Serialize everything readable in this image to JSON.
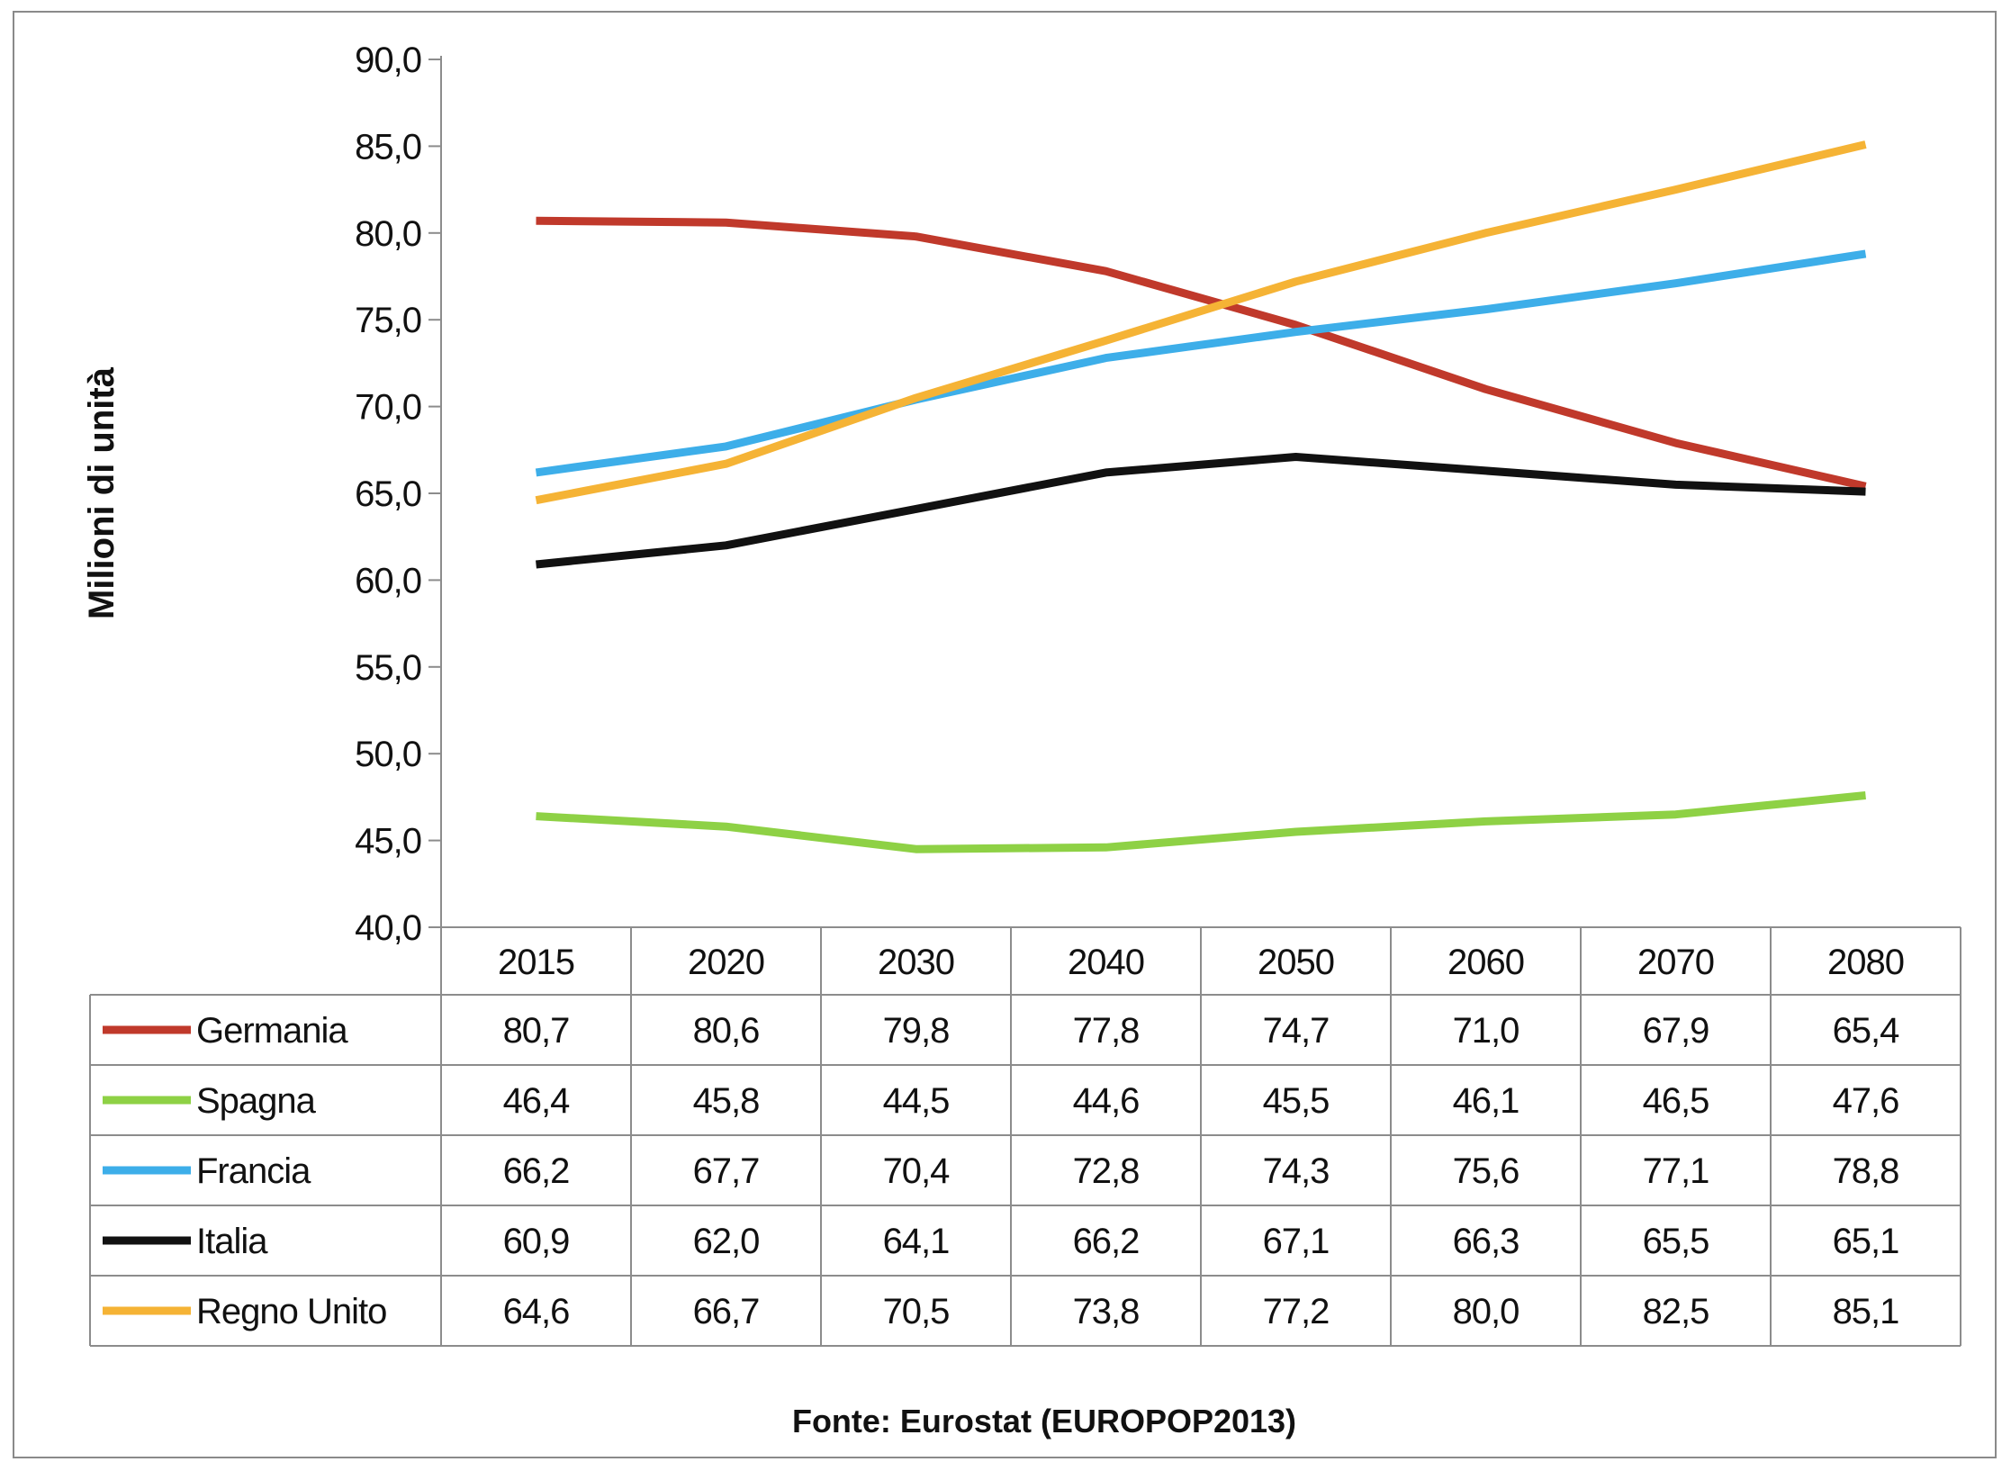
{
  "chart_data": {
    "type": "line",
    "title": "",
    "xlabel": "",
    "ylabel": "Milioni di unità",
    "ylim": [
      40,
      90
    ],
    "y_ticks": [
      "40,0",
      "45,0",
      "50,0",
      "55,0",
      "60,0",
      "65,0",
      "70,0",
      "75,0",
      "80,0",
      "85,0",
      "90,0"
    ],
    "x": [
      "2015",
      "2020",
      "2030",
      "2040",
      "2050",
      "2060",
      "2070",
      "2080"
    ],
    "grid": false,
    "legend": "data-table-below",
    "series": [
      {
        "name": "Germania",
        "color": "#c0392b",
        "values": [
          80.7,
          80.6,
          79.8,
          77.8,
          74.7,
          71.0,
          67.9,
          65.4
        ],
        "labels": [
          "80,7",
          "80,6",
          "79,8",
          "77,8",
          "74,7",
          "71,0",
          "67,9",
          "65,4"
        ]
      },
      {
        "name": "Spagna",
        "color": "#8ed145",
        "values": [
          46.4,
          45.8,
          44.5,
          44.6,
          45.5,
          46.1,
          46.5,
          47.6
        ],
        "labels": [
          "46,4",
          "45,8",
          "44,5",
          "44,6",
          "45,5",
          "46,1",
          "46,5",
          "47,6"
        ]
      },
      {
        "name": "Francia",
        "color": "#3daee9",
        "values": [
          66.2,
          67.7,
          70.4,
          72.8,
          74.3,
          75.6,
          77.1,
          78.8
        ],
        "labels": [
          "66,2",
          "67,7",
          "70,4",
          "72,8",
          "74,3",
          "75,6",
          "77,1",
          "78,8"
        ]
      },
      {
        "name": "Italia",
        "color": "#111111",
        "values": [
          60.9,
          62.0,
          64.1,
          66.2,
          67.1,
          66.3,
          65.5,
          65.1
        ],
        "labels": [
          "60,9",
          "62,0",
          "64,1",
          "66,2",
          "67,1",
          "66,3",
          "65,5",
          "65,1"
        ]
      },
      {
        "name": "Regno Unito",
        "color": "#f5b335",
        "values": [
          64.6,
          66.7,
          70.5,
          73.8,
          77.2,
          80.0,
          82.5,
          85.1
        ],
        "labels": [
          "64,6",
          "66,7",
          "70,5",
          "73,8",
          "77,2",
          "80,0",
          "82,5",
          "85,1"
        ]
      }
    ],
    "source": "Fonte: Eurostat (EUROPOP2013)"
  }
}
